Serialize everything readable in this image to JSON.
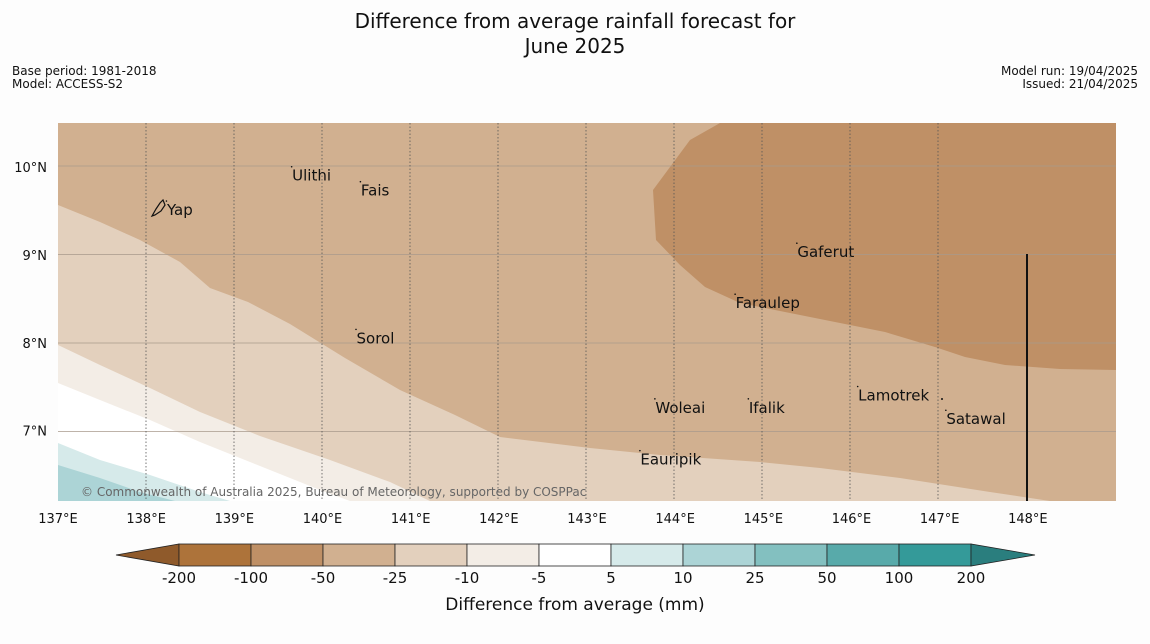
{
  "title_line1": "Difference from average rainfall forecast for",
  "title_line2": "June 2025",
  "meta_left": {
    "line1": "Base period: 1981-2018",
    "line2": "Model: ACCESS-S2"
  },
  "meta_right": {
    "line1": "Model run: 19/04/2025",
    "line2": "Issued: 21/04/2025"
  },
  "copyright": "© Commonwealth of Australia 2025, Bureau of Meteorology, supported by COSPPac",
  "map": {
    "lon_range": [
      137,
      149
    ],
    "lat_range": [
      6.2,
      10.5
    ],
    "lon_ticks": [
      "137°E",
      "138°E",
      "139°E",
      "140°E",
      "141°E",
      "142°E",
      "143°E",
      "144°E",
      "145°E",
      "146°E",
      "147°E",
      "148°E"
    ],
    "lat_ticks": [
      "10°N",
      "9°N",
      "8°N",
      "7°N"
    ],
    "places": [
      {
        "name": "Yap",
        "lon": 138.23,
        "lat": 9.51
      },
      {
        "name": "Ulithi",
        "lon": 139.65,
        "lat": 9.9
      },
      {
        "name": "Fais",
        "lon": 140.43,
        "lat": 9.73
      },
      {
        "name": "Gaferut",
        "lon": 145.38,
        "lat": 9.03
      },
      {
        "name": "Faraulep",
        "lon": 144.68,
        "lat": 8.45
      },
      {
        "name": "Sorol",
        "lon": 140.38,
        "lat": 8.05
      },
      {
        "name": "Lamotrek",
        "lon": 146.07,
        "lat": 7.4
      },
      {
        "name": "Woleai",
        "lon": 143.77,
        "lat": 7.26
      },
      {
        "name": "Ifalik",
        "lon": 144.83,
        "lat": 7.26
      },
      {
        "name": "Satawal",
        "lon": 147.07,
        "lat": 7.13
      },
      {
        "name": "Eauripik",
        "lon": 143.6,
        "lat": 6.67
      }
    ]
  },
  "colorbar": {
    "labels": [
      "-200",
      "-100",
      "-50",
      "-25",
      "-10",
      "-5",
      "5",
      "10",
      "25",
      "50",
      "100",
      "200"
    ],
    "colors": [
      "#ad733a",
      "#bf9066",
      "#d1b090",
      "#e3d0bd",
      "#f3ede6",
      "#ffffff",
      "#d6eaea",
      "#acd4d6",
      "#83c0c0",
      "#58aaaa",
      "#349a99"
    ],
    "ext_low_color": "#8f5a2b",
    "ext_high_color": "#2a7e7e",
    "title": "Difference from average (mm)"
  }
}
